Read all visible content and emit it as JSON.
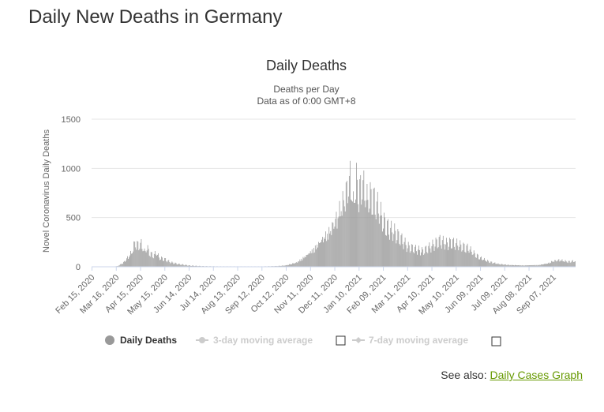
{
  "page": {
    "heading": "Daily New Deaths in Germany",
    "see_also_prefix": "See also:",
    "see_also_link": "Daily Cases Graph",
    "link_color": "#669900"
  },
  "chart_data": {
    "type": "bar",
    "title": "Daily Deaths",
    "subtitle_line1": "Deaths per Day",
    "subtitle_line2": "Data as of 0:00 GMT+8",
    "ylabel": "Novel Coronavirus Daily Deaths",
    "xlabel": "",
    "ylim": [
      0,
      1500
    ],
    "yticks": [
      0,
      500,
      1000,
      1500
    ],
    "grid": true,
    "bar_color": "#999999",
    "x_range": [
      "2020-02-15",
      "2021-10-04"
    ],
    "xticks": [
      "Feb 15, 2020",
      "Mar 16, 2020",
      "Apr 15, 2020",
      "May 15, 2020",
      "Jun 14, 2020",
      "Jul 14, 2020",
      "Aug 13, 2020",
      "Sep 12, 2020",
      "Oct 12, 2020",
      "Nov 11, 2020",
      "Dec 11, 2020",
      "Jan 10, 2021",
      "Feb 09, 2021",
      "Mar 11, 2021",
      "Apr 10, 2021",
      "May 10, 2021",
      "Jun 09, 2021",
      "Jul 09, 2021",
      "Aug 08, 2021",
      "Sep 07, 2021"
    ],
    "series_points": [
      [
        "2020-02-15",
        0
      ],
      [
        "2020-03-10",
        0
      ],
      [
        "2020-03-18",
        10
      ],
      [
        "2020-03-25",
        60
      ],
      [
        "2020-04-01",
        150
      ],
      [
        "2020-04-05",
        210
      ],
      [
        "2020-04-08",
        330
      ],
      [
        "2020-04-12",
        300
      ],
      [
        "2020-04-16",
        310
      ],
      [
        "2020-04-20",
        200
      ],
      [
        "2020-04-23",
        260
      ],
      [
        "2020-04-27",
        180
      ],
      [
        "2020-05-01",
        150
      ],
      [
        "2020-05-05",
        190
      ],
      [
        "2020-05-08",
        120
      ],
      [
        "2020-05-15",
        100
      ],
      [
        "2020-05-22",
        60
      ],
      [
        "2020-06-01",
        35
      ],
      [
        "2020-06-15",
        15
      ],
      [
        "2020-07-01",
        8
      ],
      [
        "2020-07-20",
        5
      ],
      [
        "2020-08-13",
        5
      ],
      [
        "2020-09-12",
        5
      ],
      [
        "2020-10-01",
        10
      ],
      [
        "2020-10-12",
        20
      ],
      [
        "2020-10-25",
        60
      ],
      [
        "2020-11-05",
        150
      ],
      [
        "2020-11-15",
        250
      ],
      [
        "2020-11-25",
        380
      ],
      [
        "2020-12-05",
        500
      ],
      [
        "2020-12-12",
        650
      ],
      [
        "2020-12-18",
        800
      ],
      [
        "2020-12-23",
        950
      ],
      [
        "2020-12-30",
        1230
      ],
      [
        "2021-01-03",
        850
      ],
      [
        "2021-01-07",
        1180
      ],
      [
        "2021-01-10",
        1000
      ],
      [
        "2021-01-14",
        1150
      ],
      [
        "2021-01-20",
        900
      ],
      [
        "2021-01-26",
        950
      ],
      [
        "2021-02-02",
        800
      ],
      [
        "2021-02-09",
        600
      ],
      [
        "2021-02-16",
        500
      ],
      [
        "2021-02-23",
        450
      ],
      [
        "2021-03-04",
        350
      ],
      [
        "2021-03-11",
        260
      ],
      [
        "2021-03-20",
        230
      ],
      [
        "2021-03-30",
        200
      ],
      [
        "2021-04-10",
        270
      ],
      [
        "2021-04-20",
        340
      ],
      [
        "2021-04-28",
        300
      ],
      [
        "2021-05-05",
        320
      ],
      [
        "2021-05-10",
        300
      ],
      [
        "2021-05-18",
        270
      ],
      [
        "2021-05-25",
        250
      ],
      [
        "2021-06-01",
        180
      ],
      [
        "2021-06-09",
        120
      ],
      [
        "2021-06-20",
        70
      ],
      [
        "2021-07-01",
        40
      ],
      [
        "2021-07-15",
        25
      ],
      [
        "2021-08-01",
        20
      ],
      [
        "2021-08-20",
        25
      ],
      [
        "2021-09-01",
        50
      ],
      [
        "2021-09-07",
        80
      ],
      [
        "2021-09-15",
        95
      ],
      [
        "2021-09-25",
        70
      ],
      [
        "2021-10-04",
        80
      ]
    ],
    "legend": [
      {
        "label": "Daily Deaths",
        "active": true,
        "color": "#999999"
      },
      {
        "label": "3-day moving average",
        "active": false,
        "color": "#cccccc"
      },
      {
        "label": "7-day moving average",
        "active": false,
        "color": "#cccccc"
      }
    ]
  }
}
